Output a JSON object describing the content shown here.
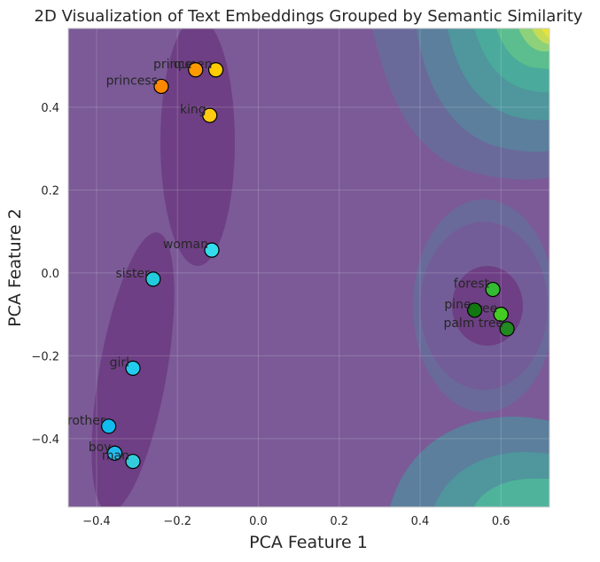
{
  "chart_data": {
    "type": "scatter",
    "title": "2D Visualization of Text Embeddings Grouped by Semantic Similarity",
    "xlabel": "PCA Feature 1",
    "ylabel": "PCA Feature 2",
    "xlim": [
      -0.47,
      0.72
    ],
    "ylim": [
      -0.565,
      0.59
    ],
    "xticks": [
      -0.4,
      -0.2,
      0.0,
      0.2,
      0.4,
      0.6
    ],
    "xtick_labels": [
      "−0.4",
      "−0.2",
      "0.0",
      "0.2",
      "0.4",
      "0.6"
    ],
    "yticks": [
      -0.4,
      -0.2,
      0.0,
      0.2,
      0.4
    ],
    "ytick_labels": [
      "−0.4",
      "−0.2",
      "0.0",
      "0.2",
      "0.4"
    ],
    "grid": true,
    "background": "filled contour plot (viridis colormap)",
    "points": [
      {
        "label": "queen",
        "x": -0.105,
        "y": 0.49,
        "color": "#FFCC00"
      },
      {
        "label": "prince",
        "x": -0.155,
        "y": 0.49,
        "color": "#FF9900"
      },
      {
        "label": "princess",
        "x": -0.24,
        "y": 0.45,
        "color": "#FF8800"
      },
      {
        "label": "king",
        "x": -0.12,
        "y": 0.38,
        "color": "#FFCC11"
      },
      {
        "label": "woman",
        "x": -0.115,
        "y": 0.055,
        "color": "#33DDEE"
      },
      {
        "label": "sister",
        "x": -0.26,
        "y": -0.015,
        "color": "#22CCDD"
      },
      {
        "label": "girl",
        "x": -0.31,
        "y": -0.23,
        "color": "#22CCEE"
      },
      {
        "label": "brother",
        "x": -0.37,
        "y": -0.37,
        "color": "#11BBEE"
      },
      {
        "label": "boy",
        "x": -0.355,
        "y": -0.435,
        "color": "#22BBEE"
      },
      {
        "label": "man",
        "x": -0.31,
        "y": -0.455,
        "color": "#33CCDD"
      },
      {
        "label": "forest",
        "x": 0.58,
        "y": -0.04,
        "color": "#33BB33"
      },
      {
        "label": "tree",
        "x": 0.6,
        "y": -0.1,
        "color": "#44CC22"
      },
      {
        "label": "pine",
        "x": 0.535,
        "y": -0.09,
        "color": "#117711"
      },
      {
        "label": "palm tree",
        "x": 0.615,
        "y": -0.135,
        "color": "#228822"
      }
    ]
  }
}
